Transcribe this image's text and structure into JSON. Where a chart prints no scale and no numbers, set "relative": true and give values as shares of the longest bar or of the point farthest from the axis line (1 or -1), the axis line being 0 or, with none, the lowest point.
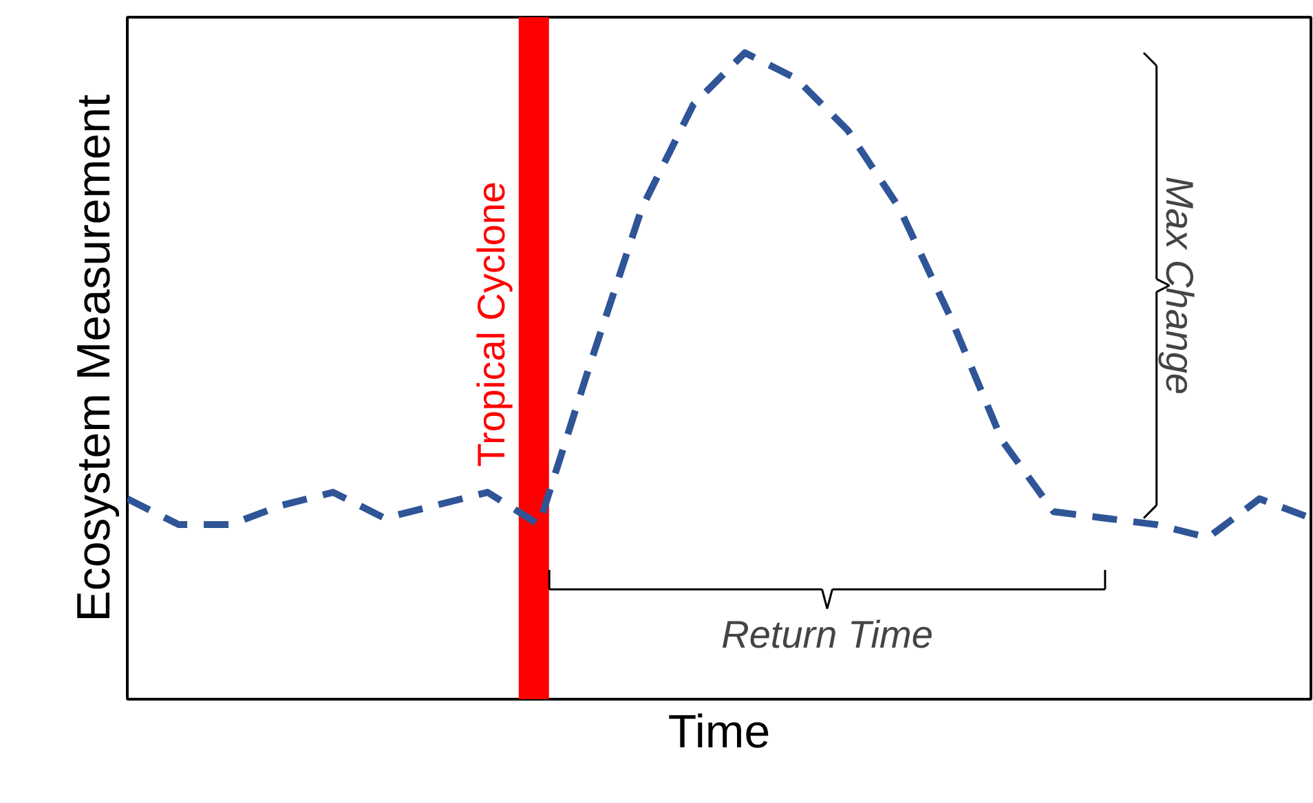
{
  "chart_data": {
    "type": "line",
    "relative": true,
    "xlabel": "Time",
    "ylabel": "Ecosystem Measurement",
    "categories": [
      null,
      null,
      null,
      null,
      null,
      null,
      null,
      null,
      null,
      null,
      null,
      null,
      null,
      null,
      null,
      null,
      null,
      null,
      null,
      null,
      null,
      null,
      null,
      null
    ],
    "line_style": "dashed",
    "series": [
      {
        "color": "#2f5597",
        "values": [
          0.31,
          0.27,
          0.27,
          0.3,
          0.32,
          0.28,
          0.3,
          0.32,
          0.27,
          0.52,
          0.76,
          0.92,
          1,
          0.96,
          0.88,
          0.76,
          0.59,
          0.4,
          0.29,
          0.28,
          0.27,
          0.25,
          0.31,
          0.28
        ]
      }
    ],
    "ref_lines": [
      {
        "axis": "x",
        "label": "Tropical Cyclone",
        "color": "#ff0000"
      }
    ],
    "annotations": [
      "Max Change",
      "Return Time"
    ]
  }
}
